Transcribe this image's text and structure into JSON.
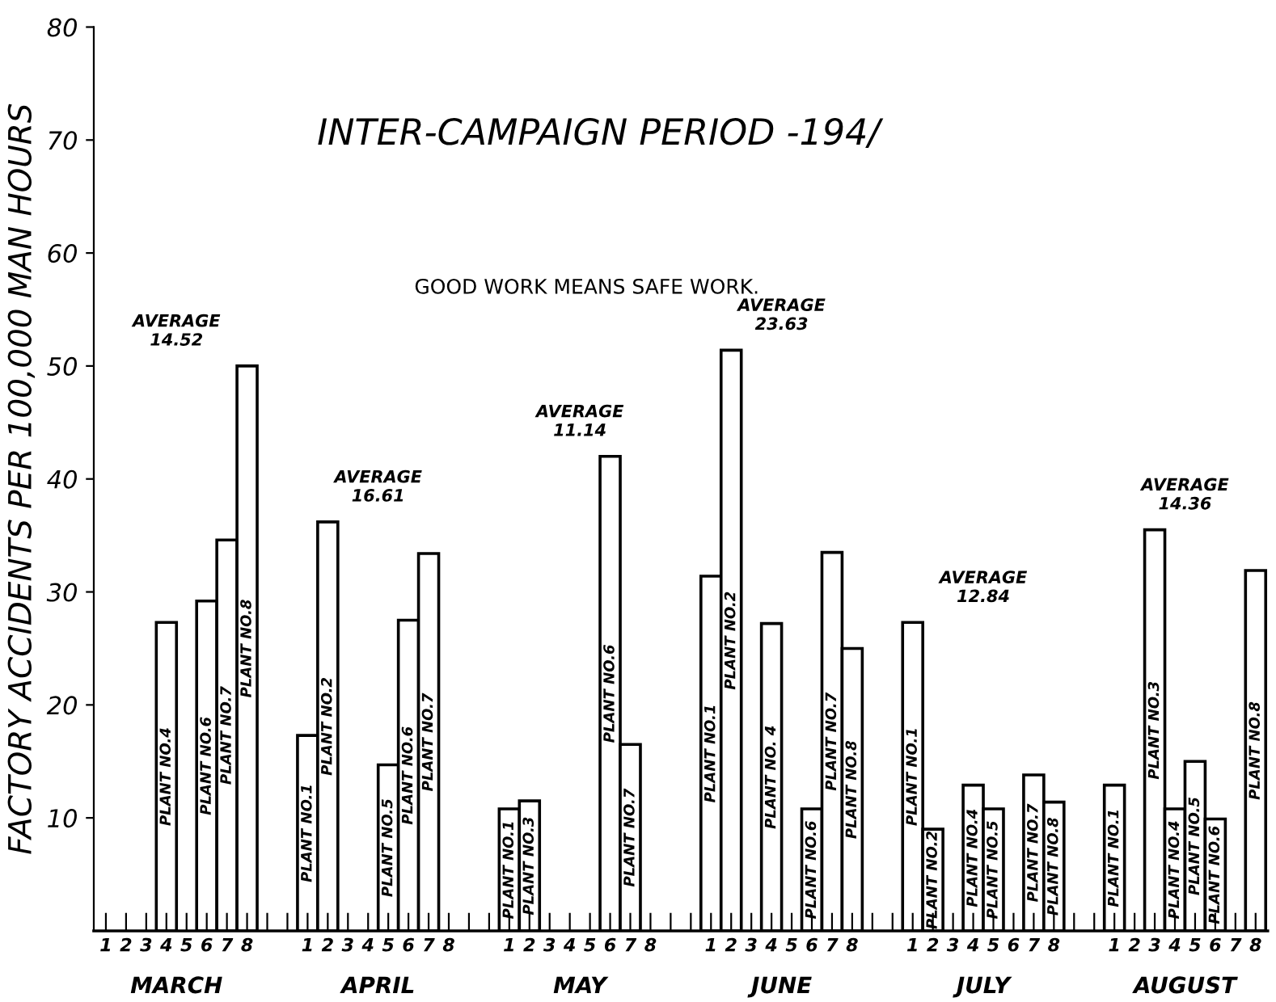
{
  "chart_data": {
    "type": "bar",
    "title": "INTER-CAMPAIGN PERIOD -194/",
    "subtitle": "GOOD WORK MEANS SAFE WORK.",
    "ylabel": "FACTORY ACCIDENTS PER 100,000 MAN HOURS",
    "categories": [
      "1",
      "2",
      "3",
      "4",
      "5",
      "6",
      "7",
      "8",
      null,
      null,
      "1",
      "2",
      "3",
      "4",
      "5",
      "6",
      "7",
      "8",
      null,
      null,
      "1",
      "2",
      "3",
      "4",
      "5",
      "6",
      "7",
      "8",
      null,
      null,
      "1",
      "2",
      "3",
      "4",
      "5",
      "6",
      "7",
      "8",
      null,
      null,
      "1",
      "2",
      "3",
      "4",
      "5",
      "6",
      "7",
      "8",
      null,
      null,
      "1",
      "2",
      "3",
      "4",
      "5",
      "6",
      "7",
      "8"
    ],
    "series": [
      {
        "color": "#ffffff",
        "values": [
          null,
          null,
          null,
          27.3,
          null,
          29.2,
          34.6,
          50.0,
          null,
          null,
          17.3,
          36.2,
          null,
          null,
          14.7,
          27.5,
          33.4,
          null,
          null,
          null,
          10.8,
          11.5,
          null,
          null,
          null,
          42.0,
          16.5,
          null,
          null,
          null,
          31.4,
          51.4,
          null,
          27.2,
          null,
          10.8,
          33.5,
          25.0,
          null,
          null,
          27.3,
          9.0,
          null,
          12.9,
          10.8,
          null,
          13.8,
          11.4,
          null,
          null,
          12.9,
          null,
          35.5,
          10.8,
          15.0,
          9.9,
          null,
          31.9
        ]
      }
    ],
    "ylim": [
      0,
      80
    ],
    "yticks": [
      10,
      20,
      30,
      40,
      50,
      60,
      70,
      80
    ],
    "grid": false,
    "annotations": [
      "MARCH",
      "APRIL",
      "MAY",
      "JUNE",
      "JULY",
      "AUGUST",
      "AVERAGE\n14.52",
      "AVERAGE\n16.61",
      "AVERAGE\n11.14",
      "AVERAGE\n23.63",
      "AVERAGE\n12.84",
      "AVERAGE\n14.36",
      "PLANT NO.4",
      "PLANT NO.6",
      "PLANT NO.7",
      "PLANT NO.8",
      "PLANT NO.1",
      "PLANT NO.2",
      "PLANT NO.5",
      "PLANT NO.6",
      "PLANT NO.7",
      "PLANT NO.1",
      "PLANT NO.3",
      "PLANT NO.6",
      "PLANT NO.7",
      "PLANT NO.1",
      "PLANT NO.2",
      "PLANT NO. 4",
      "PLANT NO.6",
      "PLANT NO.7",
      "PLANT NO.8",
      "PLANT NO.1",
      "PLANT NO.2",
      "PLANT NO.4",
      "PLANT NO.5",
      "PLANT NO.7",
      "PLANT NO.8",
      "PLANT NO.1",
      "PLANT NO.3",
      "PLANT NO.4",
      "PLANT NO.5",
      "PLANT NO.6",
      "PLANT NO.8"
    ]
  }
}
